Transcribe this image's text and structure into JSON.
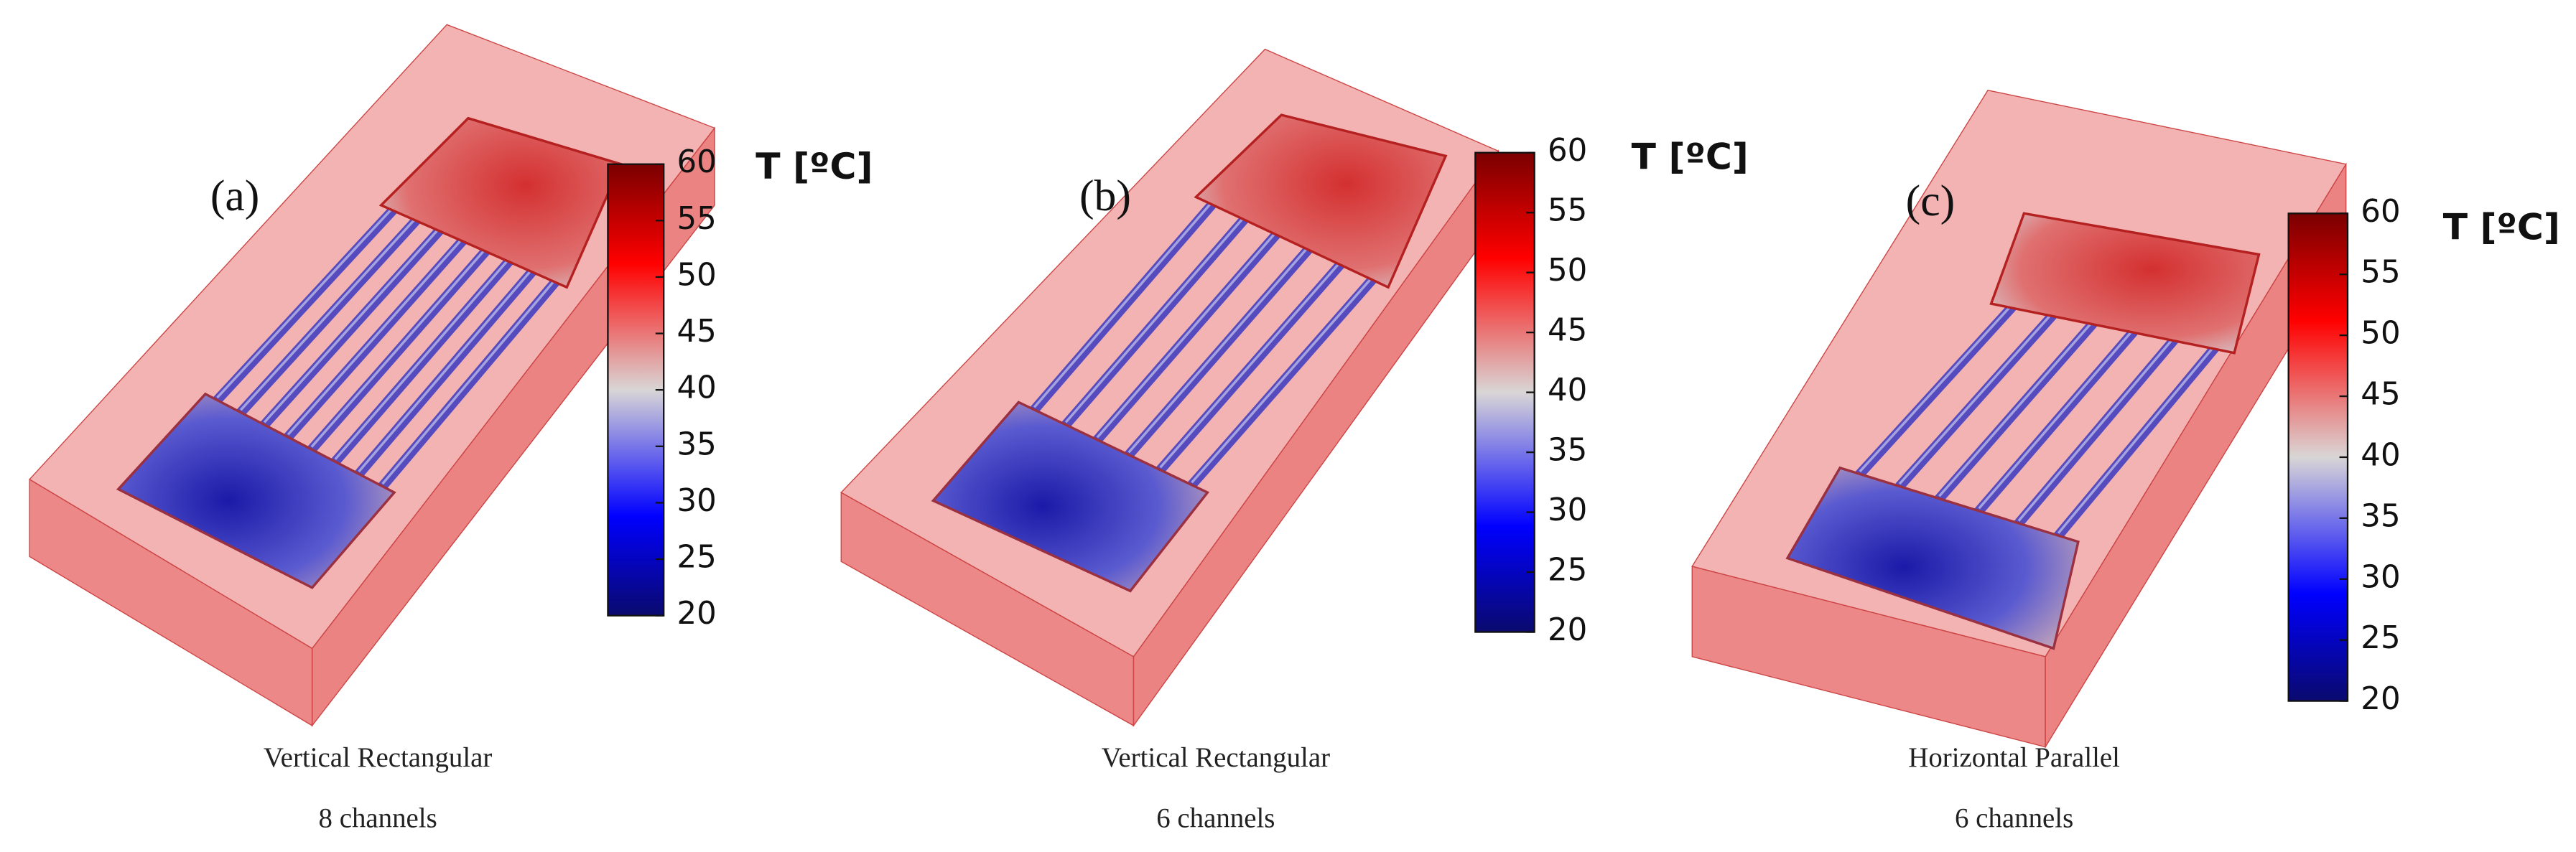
{
  "panels": [
    {
      "label": "(a)",
      "colorbar": {
        "title": "T [ºC]",
        "ticks": [
          20,
          25,
          30,
          35,
          40,
          45,
          50,
          55,
          60
        ]
      },
      "caption": [
        "Vertical Rectangular",
        "8 channels"
      ]
    },
    {
      "label": "(b)",
      "colorbar": {
        "title": "T [ºC]",
        "ticks": [
          20,
          25,
          30,
          35,
          40,
          45,
          50,
          55,
          60
        ]
      },
      "caption": [
        "Vertical Rectangular",
        "6 channels"
      ]
    },
    {
      "label": "(c)",
      "colorbar": {
        "title": "T [ºC]",
        "ticks": [
          20,
          25,
          30,
          35,
          40,
          45,
          50,
          55,
          60
        ]
      },
      "caption": [
        "Horizontal Parallel",
        "6 channels"
      ]
    }
  ]
}
